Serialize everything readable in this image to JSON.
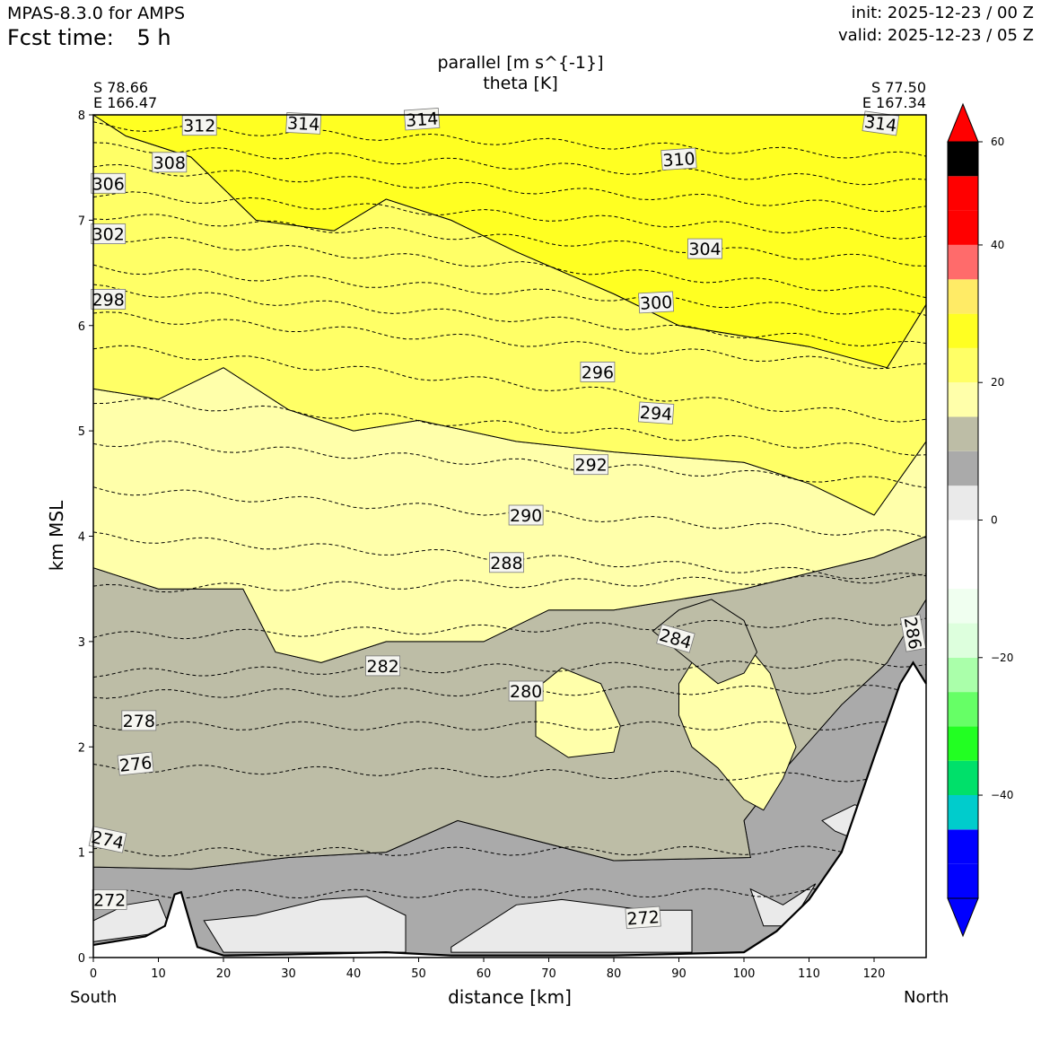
{
  "header": {
    "model": "MPAS-8.3.0 for AMPS",
    "fcst_label": "Fcst time:",
    "fcst_value": "5 h",
    "init": "init: 2025-12-23 / 00 Z",
    "valid": "valid: 2025-12-23 / 05 Z"
  },
  "endpoints": {
    "start": {
      "lat": "S 78.66",
      "lon": "E 166.47",
      "label": "South"
    },
    "end": {
      "lat": "S 77.50",
      "lon": "E 167.34",
      "label": "North"
    }
  },
  "colors": {
    "terrain": "#ffffff",
    "bins": [
      "#0000ff",
      "#0000ff",
      "#0000ff",
      "#00cccc",
      "#00e06a",
      "#22ff22",
      "#66ff66",
      "#aaffaa",
      "#ddffdd",
      "#f0fff0",
      "#ffffff",
      "#ffffff",
      "#eaeaea",
      "#aaaaaa",
      "#bdbda6",
      "#ffffaa",
      "#ffff66",
      "#ffff22",
      "#ffeb66",
      "#ff6b6b",
      "#ff0000",
      "#ff0000"
    ]
  },
  "chart_data": {
    "type": "contour-cross-section",
    "title": "parallel [m s^{-1}]",
    "subtitle": "theta [K]",
    "xlabel": "distance [km]",
    "ylabel": "km MSL",
    "xlim": [
      0,
      128
    ],
    "ylim": [
      0,
      8
    ],
    "xticks": [
      0,
      10,
      20,
      30,
      40,
      50,
      60,
      70,
      80,
      90,
      100,
      110,
      120
    ],
    "yticks": [
      0,
      1,
      2,
      3,
      4,
      5,
      6,
      7,
      8
    ],
    "colorbar": {
      "levels": [
        -55,
        -50,
        -45,
        -40,
        -35,
        -30,
        -25,
        -20,
        -15,
        -10,
        -5,
        0,
        5,
        10,
        15,
        20,
        25,
        30,
        35,
        40,
        45,
        50,
        55
      ],
      "ticks": [
        60,
        40,
        20,
        0,
        -20,
        -40
      ],
      "tick_labels": [
        "60",
        "40",
        "20",
        "0",
        "−20",
        "−40"
      ],
      "extend": "both"
    },
    "wind_regions": [
      {
        "range": "5 to 10",
        "points": [
          [
            0,
            0.12
          ],
          [
            13,
            0.61
          ],
          [
            16,
            0.1
          ],
          [
            127.5,
            2.7
          ],
          [
            128,
            0
          ],
          [
            0,
            0
          ]
        ]
      },
      {
        "range": "5 to 10",
        "points": [
          [
            0,
            0.86
          ],
          [
            15,
            0.84
          ],
          [
            30,
            0.95
          ],
          [
            45,
            1.0
          ],
          [
            56,
            1.3
          ],
          [
            80,
            0.92
          ],
          [
            101,
            0.95
          ],
          [
            100,
            1.3
          ],
          [
            105,
            1.7
          ],
          [
            115,
            2.4
          ],
          [
            122,
            2.8
          ],
          [
            128,
            3.4
          ],
          [
            128,
            0
          ],
          [
            0,
            0
          ]
        ]
      },
      {
        "range": "10 to 15",
        "points": [
          [
            0,
            0.86
          ],
          [
            15,
            0.84
          ],
          [
            30,
            0.95
          ],
          [
            45,
            1.0
          ],
          [
            56,
            1.3
          ],
          [
            80,
            0.92
          ],
          [
            101,
            0.95
          ],
          [
            100,
            1.3
          ],
          [
            105,
            1.7
          ],
          [
            115,
            2.4
          ],
          [
            122,
            2.8
          ],
          [
            128,
            3.4
          ],
          [
            128,
            4.0
          ],
          [
            120,
            3.8
          ],
          [
            100,
            3.5
          ],
          [
            80,
            3.3
          ],
          [
            70,
            3.3
          ],
          [
            60,
            3.0
          ],
          [
            45,
            3.0
          ],
          [
            35,
            2.8
          ],
          [
            28,
            2.9
          ],
          [
            23,
            3.5
          ],
          [
            10,
            3.5
          ],
          [
            0,
            3.7
          ]
        ]
      },
      {
        "range": "15 to 20",
        "points": [
          [
            0,
            3.7
          ],
          [
            10,
            3.5
          ],
          [
            23,
            3.5
          ],
          [
            28,
            2.9
          ],
          [
            35,
            2.8
          ],
          [
            45,
            3.0
          ],
          [
            60,
            3.0
          ],
          [
            70,
            3.3
          ],
          [
            80,
            3.3
          ],
          [
            100,
            3.5
          ],
          [
            120,
            3.8
          ],
          [
            128,
            4.0
          ],
          [
            128,
            4.9
          ],
          [
            120,
            4.2
          ],
          [
            110,
            4.5
          ],
          [
            100,
            4.7
          ],
          [
            80,
            4.8
          ],
          [
            65,
            4.9
          ],
          [
            50,
            5.1
          ],
          [
            40,
            5.0
          ],
          [
            30,
            5.2
          ],
          [
            20,
            5.6
          ],
          [
            10,
            5.3
          ],
          [
            0,
            5.4
          ]
        ]
      },
      {
        "range": "20 to 25",
        "points": [
          [
            0,
            5.4
          ],
          [
            10,
            5.3
          ],
          [
            20,
            5.6
          ],
          [
            30,
            5.2
          ],
          [
            40,
            5.0
          ],
          [
            50,
            5.1
          ],
          [
            65,
            4.9
          ],
          [
            80,
            4.8
          ],
          [
            100,
            4.7
          ],
          [
            110,
            4.5
          ],
          [
            120,
            4.2
          ],
          [
            128,
            4.9
          ],
          [
            128,
            6.2
          ],
          [
            122,
            5.6
          ],
          [
            110,
            5.8
          ],
          [
            90,
            6.0
          ],
          [
            80,
            6.3
          ],
          [
            65,
            6.7
          ],
          [
            55,
            7.0
          ],
          [
            45,
            7.2
          ],
          [
            37,
            6.9
          ],
          [
            25,
            7.0
          ],
          [
            15,
            7.6
          ],
          [
            5,
            7.8
          ],
          [
            0,
            8.0
          ]
        ]
      },
      {
        "range": "25 to 30",
        "points": [
          [
            0,
            8.0
          ],
          [
            5,
            7.8
          ],
          [
            15,
            7.6
          ],
          [
            25,
            7.0
          ],
          [
            37,
            6.9
          ],
          [
            45,
            7.2
          ],
          [
            55,
            7.0
          ],
          [
            65,
            6.7
          ],
          [
            80,
            6.3
          ],
          [
            90,
            6.0
          ],
          [
            110,
            5.8
          ],
          [
            122,
            5.6
          ],
          [
            128,
            6.2
          ],
          [
            128,
            8.0
          ]
        ]
      },
      {
        "range": "15 to 20",
        "points": [
          [
            69,
            2.6
          ],
          [
            72,
            2.75
          ],
          [
            78,
            2.6
          ],
          [
            81,
            2.2
          ],
          [
            80,
            1.95
          ],
          [
            73,
            1.9
          ],
          [
            68,
            2.1
          ],
          [
            68,
            2.5
          ]
        ]
      },
      {
        "range": "15 to 20",
        "points": [
          [
            90,
            2.6
          ],
          [
            92,
            2.8
          ],
          [
            96,
            3.1
          ],
          [
            100,
            3.0
          ],
          [
            104,
            2.7
          ],
          [
            108,
            2.0
          ],
          [
            106,
            1.7
          ],
          [
            103,
            1.4
          ],
          [
            100,
            1.5
          ],
          [
            96,
            1.8
          ],
          [
            92,
            2.0
          ],
          [
            90,
            2.3
          ]
        ]
      },
      {
        "range": "10 to 15",
        "points": [
          [
            86,
            3.1
          ],
          [
            90,
            3.3
          ],
          [
            95,
            3.4
          ],
          [
            100,
            3.2
          ],
          [
            102,
            2.9
          ],
          [
            100,
            2.7
          ],
          [
            96,
            2.6
          ],
          [
            92,
            2.8
          ],
          [
            88,
            3.0
          ]
        ]
      },
      {
        "range": "0 to 5",
        "points": [
          [
            17,
            0.35
          ],
          [
            25,
            0.4
          ],
          [
            35,
            0.55
          ],
          [
            42,
            0.58
          ],
          [
            48,
            0.4
          ],
          [
            48,
            0.05
          ],
          [
            20,
            0.05
          ]
        ]
      },
      {
        "range": "0 to 5",
        "points": [
          [
            55,
            0.1
          ],
          [
            65,
            0.5
          ],
          [
            72,
            0.55
          ],
          [
            85,
            0.45
          ],
          [
            92,
            0.45
          ],
          [
            92,
            0.05
          ],
          [
            55,
            0.05
          ]
        ]
      },
      {
        "range": "0 to 5",
        "points": [
          [
            101,
            0.65
          ],
          [
            106,
            0.5
          ],
          [
            111,
            0.7
          ],
          [
            107,
            0.3
          ],
          [
            103,
            0.3
          ]
        ]
      },
      {
        "range": "0 to 5",
        "points": [
          [
            112,
            1.3
          ],
          [
            117,
            1.45
          ],
          [
            120,
            1.4
          ],
          [
            118,
            1.1
          ],
          [
            114,
            1.2
          ]
        ]
      },
      {
        "range": "0 to 5",
        "points": [
          [
            0,
            0.35
          ],
          [
            5,
            0.5
          ],
          [
            10,
            0.55
          ],
          [
            12,
            0.25
          ],
          [
            0,
            0.15
          ]
        ]
      }
    ],
    "theta_contours": [
      {
        "level": 272,
        "label": "272",
        "label_at": [
          2.5,
          0.55
        ],
        "angle": 0
      },
      {
        "level": 272,
        "label": "272",
        "label_at": [
          84.5,
          0.38
        ],
        "angle": -4
      },
      {
        "level": 274,
        "label": "274",
        "label_at": [
          2.2,
          1.12
        ],
        "angle": 12
      },
      {
        "level": 276,
        "label": "276",
        "label_at": [
          6.5,
          1.84
        ],
        "angle": -6
      },
      {
        "level": 278,
        "label": "278",
        "label_at": [
          7.0,
          2.25
        ],
        "angle": 0
      },
      {
        "level": 280,
        "label": "280",
        "label_at": [
          66.5,
          2.53
        ],
        "angle": 0
      },
      {
        "level": 282,
        "label": "282",
        "label_at": [
          44.5,
          2.77
        ],
        "angle": 0
      },
      {
        "level": 284,
        "label": "284",
        "label_at": [
          89.5,
          3.03
        ],
        "angle": 16
      },
      {
        "level": 286,
        "label": "286",
        "label_at": [
          126.0,
          3.08
        ],
        "angle": 80
      },
      {
        "level": 288,
        "label": "288",
        "label_at": [
          63.5,
          3.75
        ],
        "angle": 0
      },
      {
        "level": 290,
        "label": "290",
        "label_at": [
          66.5,
          4.2
        ],
        "angle": 0
      },
      {
        "level": 292,
        "label": "292",
        "label_at": [
          76.5,
          4.68
        ],
        "angle": 0
      },
      {
        "level": 294,
        "label": "294",
        "label_at": [
          86.5,
          5.17
        ],
        "angle": 4
      },
      {
        "level": 296,
        "label": "296",
        "label_at": [
          77.5,
          5.56
        ],
        "angle": 0
      },
      {
        "level": 298,
        "label": "298",
        "label_at": [
          2.3,
          6.25
        ],
        "angle": 0
      },
      {
        "level": 300,
        "label": "300",
        "label_at": [
          86.5,
          6.22
        ],
        "angle": -3
      },
      {
        "level": 302,
        "label": "302",
        "label_at": [
          2.3,
          6.87
        ],
        "angle": 0
      },
      {
        "level": 304,
        "label": "304",
        "label_at": [
          94.0,
          6.73
        ],
        "angle": 0
      },
      {
        "level": 306,
        "label": "306",
        "label_at": [
          2.3,
          7.35
        ],
        "angle": 0
      },
      {
        "level": 308,
        "label": "308",
        "label_at": [
          11.7,
          7.55
        ],
        "angle": 0
      },
      {
        "level": 310,
        "label": "310",
        "label_at": [
          90.0,
          7.58
        ],
        "angle": -4
      },
      {
        "level": 312,
        "label": "312",
        "label_at": [
          16.3,
          7.9
        ],
        "angle": 0
      },
      {
        "level": 314,
        "label": "314",
        "label_at": [
          32.3,
          7.92
        ],
        "angle": 3
      },
      {
        "level": 314,
        "label": "314",
        "label_at": [
          50.5,
          7.96
        ],
        "angle": -4
      },
      {
        "level": 314,
        "label": "314",
        "label_at": [
          121.0,
          7.92
        ],
        "angle": 8
      }
    ],
    "theta_lines": [
      [
        [
          0,
          0.6
        ],
        [
          128,
          0.62
        ]
      ],
      [
        [
          0,
          1.0
        ],
        [
          128,
          1.02
        ]
      ],
      [
        [
          0,
          1.8
        ],
        [
          128,
          1.7
        ]
      ],
      [
        [
          0,
          2.2
        ],
        [
          128,
          2.2
        ]
      ],
      [
        [
          0,
          2.5
        ],
        [
          128,
          2.55
        ]
      ],
      [
        [
          0,
          2.7
        ],
        [
          128,
          2.8
        ]
      ],
      [
        [
          0,
          3.05
        ],
        [
          128,
          3.2
        ]
      ],
      [
        [
          0,
          3.5
        ],
        [
          128,
          3.6
        ]
      ],
      [
        [
          0,
          4.0
        ],
        [
          128,
          3.6
        ]
      ],
      [
        [
          0,
          4.45
        ],
        [
          128,
          4.0
        ]
      ],
      [
        [
          0,
          4.9
        ],
        [
          128,
          4.5
        ]
      ],
      [
        [
          0,
          5.3
        ],
        [
          128,
          4.8
        ]
      ],
      [
        [
          0,
          5.8
        ],
        [
          128,
          5.1
        ]
      ],
      [
        [
          0,
          6.1
        ],
        [
          128,
          5.6
        ]
      ],
      [
        [
          0,
          6.35
        ],
        [
          128,
          5.8
        ]
      ],
      [
        [
          0,
          6.55
        ],
        [
          128,
          6.1
        ]
      ],
      [
        [
          0,
          6.85
        ],
        [
          128,
          6.3
        ]
      ],
      [
        [
          0,
          7.05
        ],
        [
          128,
          6.6
        ]
      ],
      [
        [
          0,
          7.25
        ],
        [
          128,
          6.85
        ]
      ],
      [
        [
          0,
          7.5
        ],
        [
          128,
          7.1
        ]
      ],
      [
        [
          0,
          7.7
        ],
        [
          128,
          7.35
        ]
      ],
      [
        [
          0,
          7.9
        ],
        [
          128,
          7.6
        ]
      ]
    ],
    "terrain": [
      [
        0,
        0.12
      ],
      [
        8,
        0.2
      ],
      [
        11,
        0.3
      ],
      [
        12.5,
        0.6
      ],
      [
        13.5,
        0.62
      ],
      [
        15,
        0.3
      ],
      [
        16,
        0.1
      ],
      [
        20,
        0.02
      ],
      [
        30,
        0.03
      ],
      [
        45,
        0.05
      ],
      [
        55,
        0.02
      ],
      [
        80,
        0.02
      ],
      [
        100,
        0.05
      ],
      [
        105,
        0.25
      ],
      [
        110,
        0.55
      ],
      [
        115,
        1.0
      ],
      [
        120,
        1.9
      ],
      [
        124,
        2.6
      ],
      [
        126,
        2.8
      ],
      [
        128,
        2.6
      ]
    ]
  }
}
